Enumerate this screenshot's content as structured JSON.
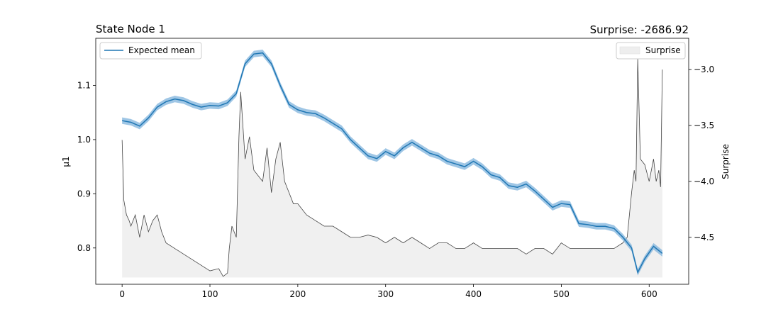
{
  "chart_data": {
    "type": "line",
    "title_left": "State Node 1",
    "title_right": "Surprise: -2686.92",
    "xlabel": "",
    "ylabel_left": "μ1",
    "ylabel_right": "Surprise",
    "xlim": [
      -30,
      645
    ],
    "ylim_left": [
      0.733,
      1.187
    ],
    "ylim_right": [
      -4.92,
      -2.72
    ],
    "xticks": [
      0,
      100,
      200,
      300,
      400,
      500,
      600
    ],
    "yticks_left": [
      0.8,
      0.9,
      1.0,
      1.1
    ],
    "yticks_right": [
      -4.5,
      -4.0,
      -3.5,
      -3.0
    ],
    "legend_left": {
      "position": "upper-left",
      "label": "Expected mean"
    },
    "legend_right": {
      "position": "upper-right",
      "label": "Surprise"
    },
    "colors": {
      "mean_line": "#1f77b4",
      "mean_band": "#7fb3dc",
      "surprise_line": "#444444",
      "surprise_fill": "#f0f0f0"
    },
    "series": [
      {
        "name": "Expected mean",
        "axis": "left",
        "x": [
          0,
          10,
          20,
          30,
          40,
          50,
          60,
          70,
          80,
          90,
          100,
          110,
          120,
          130,
          140,
          150,
          160,
          170,
          180,
          190,
          200,
          210,
          220,
          230,
          240,
          250,
          260,
          270,
          280,
          290,
          300,
          310,
          320,
          330,
          340,
          350,
          360,
          370,
          380,
          390,
          400,
          410,
          420,
          430,
          440,
          450,
          460,
          470,
          480,
          490,
          500,
          510,
          520,
          530,
          540,
          550,
          560,
          570,
          580,
          587,
          595,
          605,
          615
        ],
        "y": [
          1.035,
          1.032,
          1.025,
          1.04,
          1.06,
          1.07,
          1.075,
          1.072,
          1.065,
          1.06,
          1.063,
          1.062,
          1.068,
          1.085,
          1.14,
          1.158,
          1.16,
          1.14,
          1.1,
          1.065,
          1.055,
          1.05,
          1.048,
          1.04,
          1.03,
          1.02,
          1.0,
          0.985,
          0.97,
          0.965,
          0.978,
          0.97,
          0.985,
          0.995,
          0.985,
          0.975,
          0.97,
          0.96,
          0.955,
          0.95,
          0.96,
          0.95,
          0.935,
          0.93,
          0.915,
          0.912,
          0.918,
          0.905,
          0.89,
          0.875,
          0.882,
          0.88,
          0.845,
          0.843,
          0.84,
          0.84,
          0.836,
          0.82,
          0.8,
          0.755,
          0.78,
          0.803,
          0.79
        ]
      },
      {
        "name": "Surprise",
        "axis": "right",
        "x": [
          0,
          2,
          5,
          8,
          10,
          15,
          20,
          25,
          30,
          35,
          40,
          45,
          50,
          60,
          70,
          80,
          90,
          100,
          110,
          115,
          120,
          122,
          125,
          130,
          133,
          135,
          140,
          145,
          150,
          160,
          165,
          170,
          175,
          180,
          185,
          190,
          195,
          200,
          210,
          220,
          230,
          240,
          250,
          260,
          270,
          280,
          290,
          300,
          310,
          320,
          330,
          340,
          350,
          360,
          370,
          380,
          390,
          400,
          410,
          420,
          430,
          440,
          450,
          460,
          470,
          480,
          490,
          500,
          510,
          520,
          530,
          540,
          550,
          560,
          570,
          575,
          580,
          583,
          585,
          587,
          590,
          595,
          600,
          605,
          608,
          611,
          613,
          615
        ],
        "y": [
          -3.63,
          -4.17,
          -4.3,
          -4.35,
          -4.4,
          -4.3,
          -4.5,
          -4.3,
          -4.45,
          -4.35,
          -4.3,
          -4.45,
          -4.55,
          -4.6,
          -4.65,
          -4.7,
          -4.75,
          -4.8,
          -4.78,
          -4.85,
          -4.82,
          -4.6,
          -4.4,
          -4.5,
          -3.6,
          -3.2,
          -3.8,
          -3.6,
          -3.9,
          -4.0,
          -3.7,
          -4.1,
          -3.8,
          -3.65,
          -4.0,
          -4.1,
          -4.2,
          -4.2,
          -4.3,
          -4.35,
          -4.4,
          -4.4,
          -4.45,
          -4.5,
          -4.5,
          -4.48,
          -4.5,
          -4.55,
          -4.5,
          -4.55,
          -4.5,
          -4.55,
          -4.6,
          -4.55,
          -4.55,
          -4.6,
          -4.6,
          -4.55,
          -4.6,
          -4.6,
          -4.6,
          -4.6,
          -4.6,
          -4.65,
          -4.6,
          -4.6,
          -4.65,
          -4.55,
          -4.6,
          -4.6,
          -4.6,
          -4.6,
          -4.6,
          -4.6,
          -4.55,
          -4.5,
          -4.1,
          -3.9,
          -4.0,
          -2.9,
          -3.8,
          -3.85,
          -4.0,
          -3.8,
          -4.0,
          -3.9,
          -4.05,
          -3.0
        ]
      }
    ]
  }
}
